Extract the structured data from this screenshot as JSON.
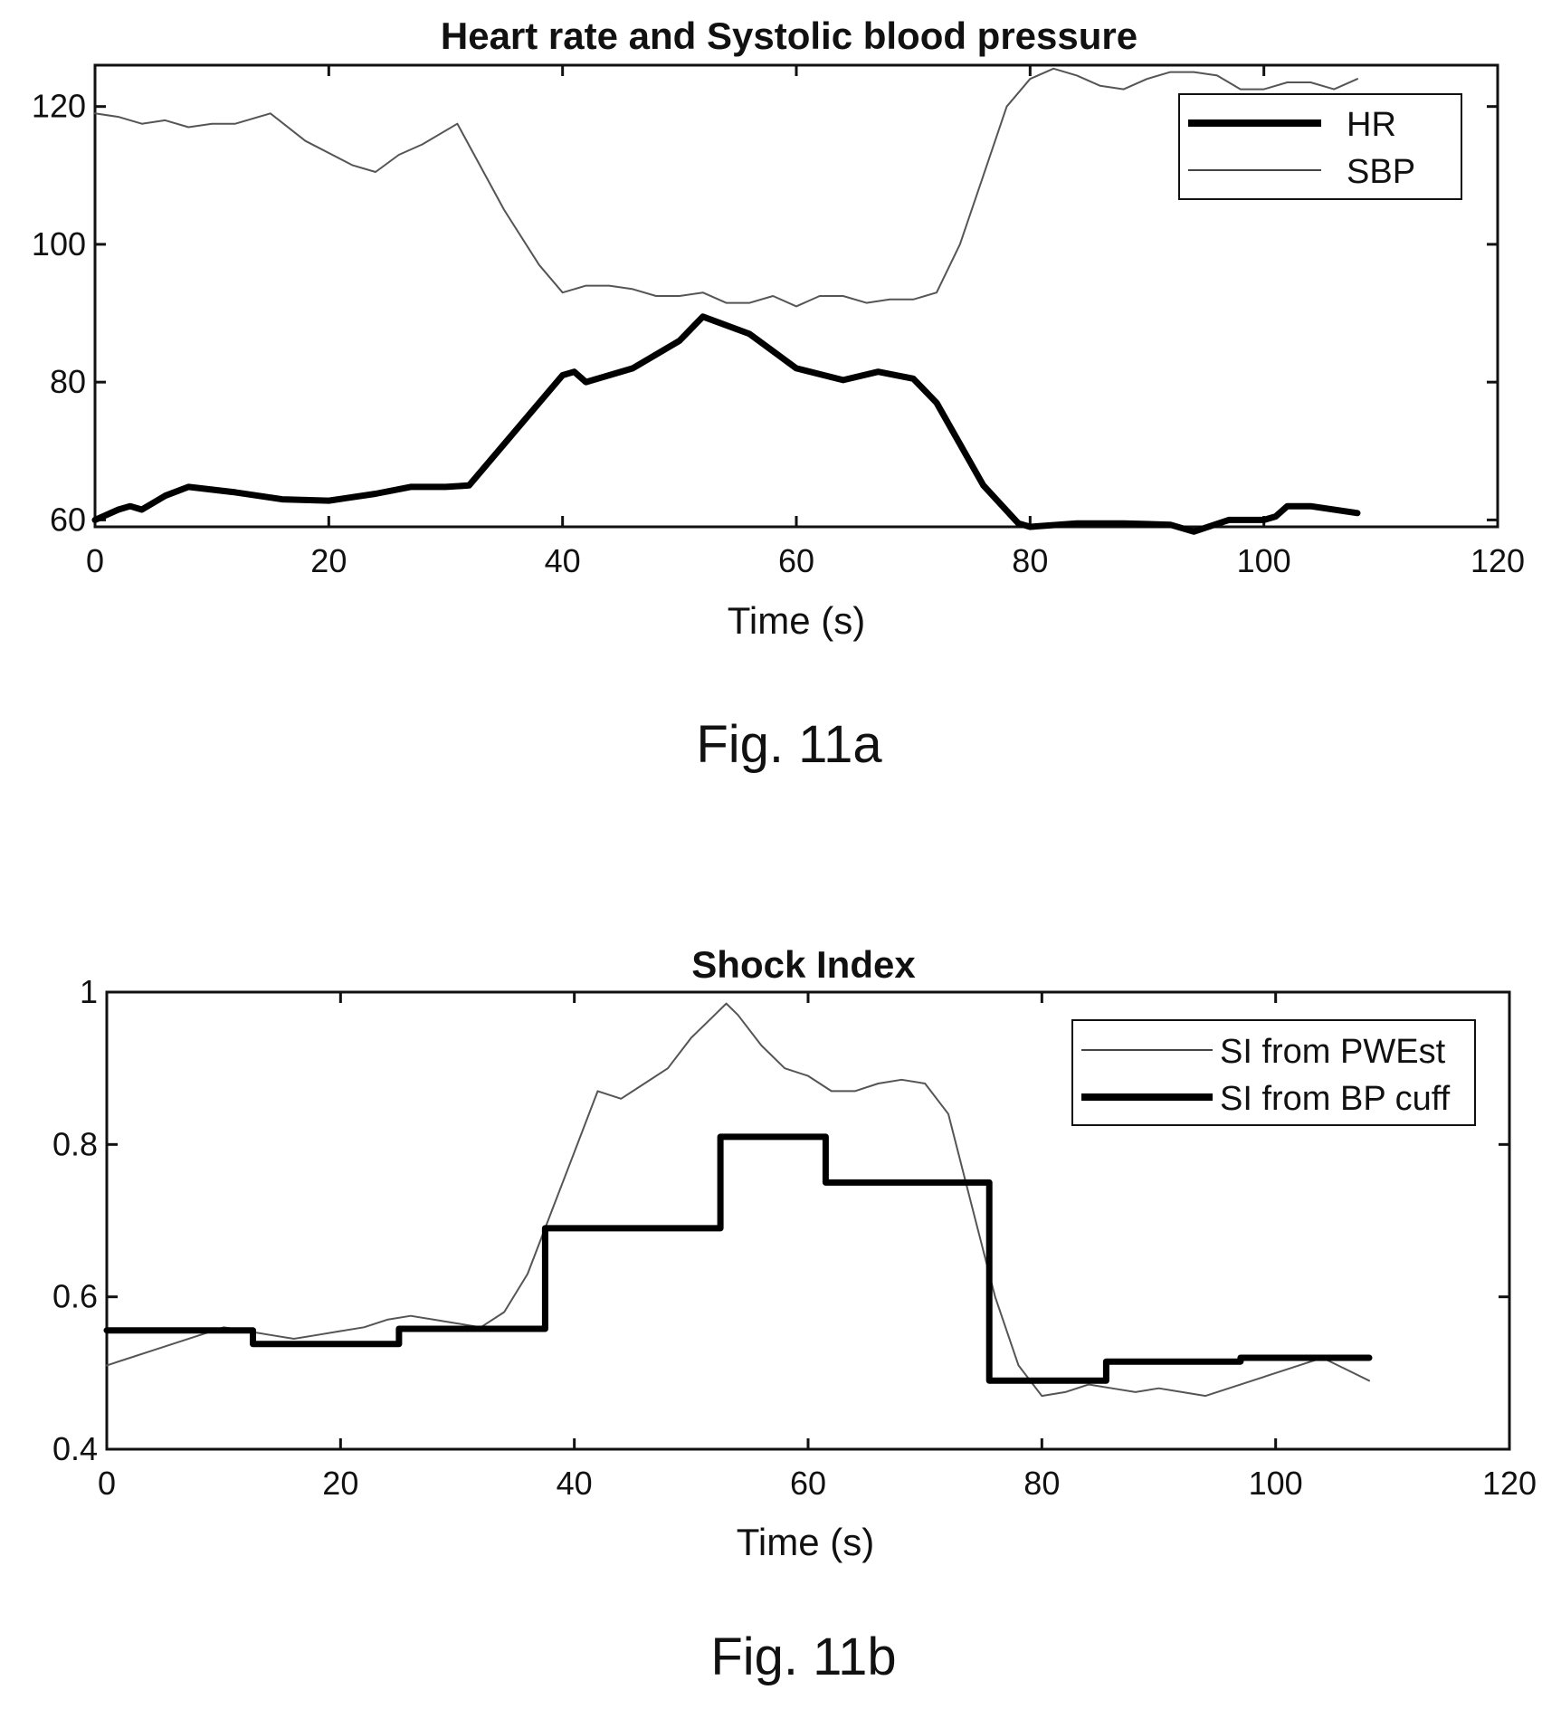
{
  "chart_data": [
    {
      "type": "line",
      "title": "Heart rate and Systolic blood pressure",
      "xlabel": "Time (s)",
      "ylabel": "",
      "caption": "Fig. 11a",
      "xlim": [
        0,
        120
      ],
      "ylim": [
        59,
        126
      ],
      "xticks": [
        "0",
        "20",
        "40",
        "60",
        "80",
        "100",
        "120"
      ],
      "yticks": [
        "60",
        "80",
        "100",
        "120"
      ],
      "legend_position": "top-right",
      "grid": false,
      "series": [
        {
          "name": "HR",
          "style": "thick",
          "x": [
            0,
            2,
            3,
            4,
            6,
            8,
            12,
            16,
            20,
            24,
            27,
            30,
            32,
            36,
            40,
            41,
            42,
            46,
            50,
            52,
            56,
            60,
            64,
            67,
            70,
            72,
            76,
            79,
            80,
            84,
            88,
            92,
            94,
            97,
            100,
            101,
            102,
            104,
            108
          ],
          "values": [
            60,
            61.5,
            62,
            61.5,
            63.5,
            64.8,
            64,
            63,
            62.8,
            63.8,
            64.8,
            64.8,
            65,
            73,
            81,
            81.5,
            80,
            82,
            86,
            89.5,
            87,
            82,
            80.3,
            81.5,
            80.5,
            77,
            65,
            59.5,
            59,
            59.5,
            59.5,
            59.3,
            58.3,
            60,
            60,
            60.5,
            62,
            62,
            61
          ]
        },
        {
          "name": "SBP",
          "style": "thin",
          "x": [
            0,
            2,
            4,
            6,
            8,
            10,
            12,
            15,
            18,
            22,
            24,
            26,
            28,
            31,
            35,
            38,
            40,
            42,
            44,
            46,
            48,
            50,
            52,
            54,
            56,
            58,
            60,
            62,
            64,
            66,
            68,
            70,
            72,
            74,
            76,
            78,
            80,
            82,
            84,
            86,
            88,
            90,
            92,
            94,
            96,
            98,
            100,
            102,
            104,
            106,
            108
          ],
          "values": [
            119,
            118.5,
            117.5,
            118,
            117,
            117.5,
            117.5,
            119,
            115,
            111.5,
            110.5,
            113,
            114.5,
            117.5,
            105,
            97,
            93,
            94,
            94,
            93.5,
            92.5,
            92.5,
            93,
            91.5,
            91.5,
            92.5,
            91,
            92.5,
            92.5,
            91.5,
            92,
            92,
            93,
            100,
            110,
            120,
            124,
            125.5,
            124.5,
            123,
            122.5,
            124,
            125,
            125,
            124.5,
            122.5,
            122.5,
            123.5,
            123.5,
            122.5,
            124
          ]
        }
      ]
    },
    {
      "type": "line",
      "title": "Shock Index",
      "xlabel": "Time (s)",
      "ylabel": "",
      "caption": "Fig. 11b",
      "xlim": [
        0,
        120
      ],
      "ylim": [
        0.4,
        1
      ],
      "xticks": [
        "0",
        "20",
        "40",
        "60",
        "80",
        "100",
        "120"
      ],
      "yticks": [
        "0.4",
        "0.6",
        "0.8",
        "1"
      ],
      "legend_position": "top-right",
      "grid": false,
      "series": [
        {
          "name": "SI from PWEst",
          "style": "thin",
          "x": [
            0,
            2,
            4,
            6,
            8,
            10,
            12,
            14,
            16,
            18,
            20,
            22,
            24,
            26,
            28,
            30,
            32,
            34,
            36,
            38,
            40,
            42,
            44,
            46,
            48,
            50,
            52,
            53,
            54,
            56,
            58,
            60,
            62,
            64,
            66,
            68,
            70,
            72,
            74,
            76,
            78,
            80,
            82,
            84,
            86,
            88,
            90,
            92,
            94,
            96,
            98,
            100,
            102,
            104,
            106,
            108
          ],
          "values": [
            0.51,
            0.52,
            0.53,
            0.54,
            0.55,
            0.56,
            0.555,
            0.55,
            0.545,
            0.55,
            0.555,
            0.56,
            0.57,
            0.575,
            0.57,
            0.565,
            0.56,
            0.58,
            0.63,
            0.71,
            0.79,
            0.87,
            0.86,
            0.88,
            0.9,
            0.94,
            0.97,
            0.985,
            0.97,
            0.93,
            0.9,
            0.89,
            0.87,
            0.87,
            0.88,
            0.885,
            0.88,
            0.84,
            0.72,
            0.6,
            0.51,
            0.47,
            0.475,
            0.485,
            0.48,
            0.475,
            0.48,
            0.475,
            0.47,
            0.48,
            0.49,
            0.5,
            0.51,
            0.52,
            0.505,
            0.49
          ]
        },
        {
          "name": "SI from BP cuff",
          "style": "thick",
          "step": true,
          "x": [
            0,
            12.5,
            25,
            37.5,
            52.5,
            61.5,
            75.5,
            85.5,
            97,
            108
          ],
          "values": [
            0.556,
            0.538,
            0.558,
            0.69,
            0.81,
            0.75,
            0.49,
            0.515,
            0.52,
            0.52
          ]
        }
      ]
    }
  ]
}
